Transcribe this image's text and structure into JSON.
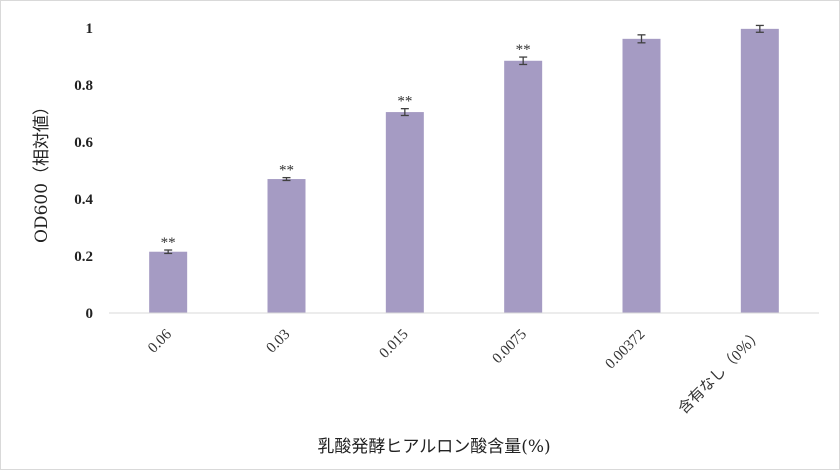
{
  "chart_data": {
    "type": "bar",
    "title": "",
    "xlabel": "乳酸発酵ヒアルロン酸含量(%)",
    "ylabel": "OD600（相対値）",
    "ylim": [
      0,
      1
    ],
    "yticks": [
      0,
      0.2,
      0.4,
      0.6,
      0.8,
      1
    ],
    "ytick_labels": [
      "0",
      "0.2",
      "0.4",
      "0.6",
      "0.8",
      "1"
    ],
    "grid": false,
    "legend": "none",
    "categories": [
      "0.06",
      "0.03",
      "0.015",
      "0.0075",
      "0.00372",
      "含有なし（0％）"
    ],
    "values": [
      0.215,
      0.47,
      0.705,
      0.885,
      0.962,
      0.997
    ],
    "errors": [
      0.006,
      0.005,
      0.012,
      0.013,
      0.014,
      0.012
    ],
    "significance": [
      "**",
      "**",
      "**",
      "**",
      "",
      ""
    ],
    "bar_color": "#a59bc3",
    "error_color": "#404040",
    "axis_color": "#d9d9d9"
  }
}
